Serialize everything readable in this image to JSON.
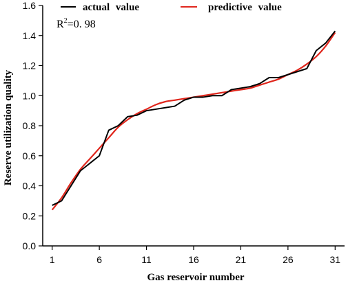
{
  "chart_data": {
    "type": "line",
    "title": "",
    "xlabel": "Gas reservoir number",
    "ylabel": "Reserve utilization quality",
    "xlim": [
      0,
      32
    ],
    "ylim": [
      0,
      1.6
    ],
    "x_ticks": [
      1,
      6,
      11,
      16,
      21,
      26,
      31
    ],
    "x_tick_labels": [
      "1",
      "6",
      "11",
      "16",
      "21",
      "26",
      "31"
    ],
    "y_ticks": [
      0,
      0.2,
      0.4,
      0.6,
      0.8,
      1.0,
      1.2,
      1.4,
      1.6
    ],
    "y_tick_labels": [
      "0.0",
      "0.2",
      "0.4",
      "0.6",
      "0.8",
      "1.0",
      "1.2",
      "1.4",
      "1.6"
    ],
    "grid": false,
    "legend_position": "top",
    "annotation": {
      "base": "R",
      "sup": "2",
      "rest": "=0. 98"
    },
    "series": [
      {
        "name": "actual value",
        "color": "#000000",
        "x": [
          1,
          2,
          3,
          4,
          5,
          6,
          7,
          8,
          9,
          10,
          11,
          12,
          13,
          14,
          15,
          16,
          17,
          18,
          19,
          20,
          21,
          22,
          23,
          24,
          25,
          26,
          27,
          28,
          29,
          30,
          31
        ],
        "values": [
          0.27,
          0.3,
          0.4,
          0.5,
          0.55,
          0.6,
          0.77,
          0.8,
          0.86,
          0.87,
          0.9,
          0.91,
          0.92,
          0.93,
          0.97,
          0.99,
          0.99,
          1.0,
          1.0,
          1.04,
          1.05,
          1.06,
          1.08,
          1.12,
          1.12,
          1.14,
          1.16,
          1.18,
          1.3,
          1.35,
          1.43
        ]
      },
      {
        "name": "predictive value",
        "color": "#e0261c",
        "x": [
          1,
          2,
          3,
          4,
          5,
          6,
          7,
          8,
          9,
          10,
          11,
          12,
          13,
          14,
          15,
          16,
          17,
          18,
          19,
          20,
          21,
          22,
          23,
          24,
          25,
          26,
          27,
          28,
          29,
          30,
          31
        ],
        "values": [
          0.24,
          0.32,
          0.42,
          0.51,
          0.58,
          0.65,
          0.72,
          0.79,
          0.84,
          0.88,
          0.91,
          0.94,
          0.96,
          0.97,
          0.98,
          0.99,
          1.0,
          1.01,
          1.02,
          1.03,
          1.04,
          1.05,
          1.07,
          1.09,
          1.11,
          1.14,
          1.17,
          1.21,
          1.26,
          1.33,
          1.42
        ]
      }
    ]
  }
}
